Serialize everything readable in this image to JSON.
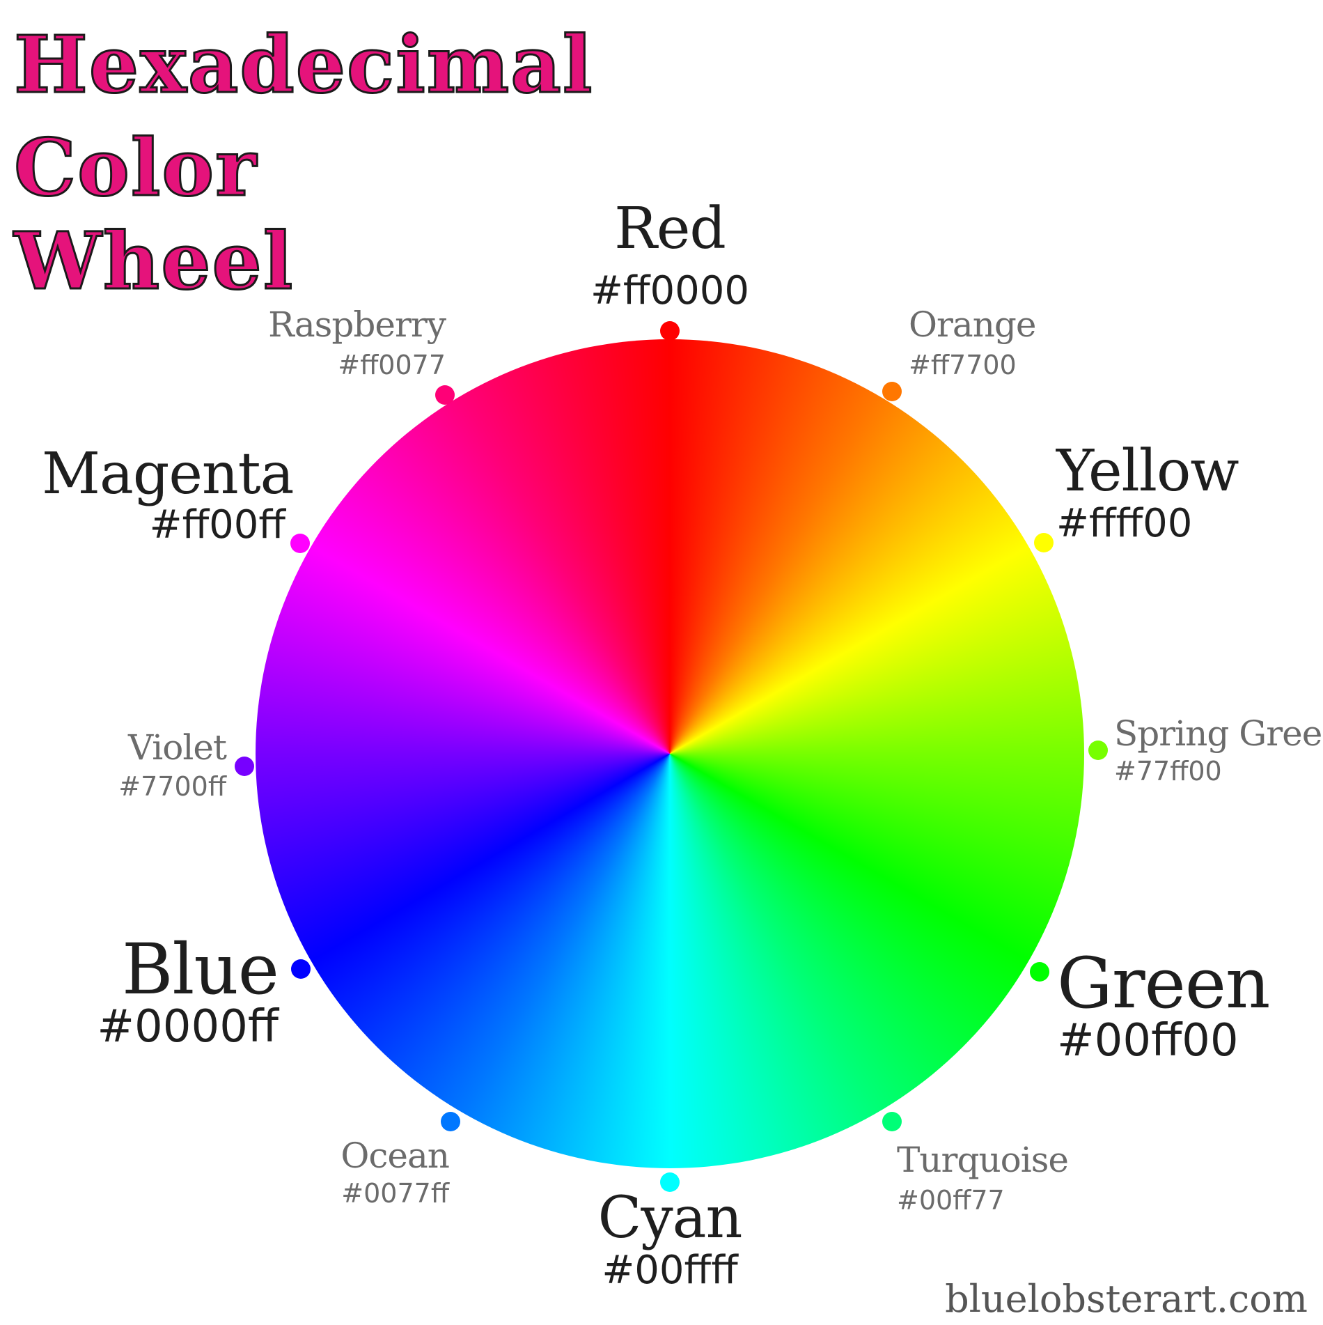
{
  "title": {
    "line1": "Hexadecimal",
    "line2": "Color",
    "line3": "Wheel"
  },
  "colors": {
    "red": {
      "name": "Red",
      "hex": "#ff0000",
      "color": "#ff0000"
    },
    "orange": {
      "name": "Orange",
      "hex": "#ff7700",
      "color": "#ff7700"
    },
    "yellow": {
      "name": "Yellow",
      "hex": "#ffff00",
      "color": "#ffff00"
    },
    "spring_green": {
      "name": "Spring Green",
      "hex": "#77ff00",
      "color": "#77ff00"
    },
    "green": {
      "name": "Green",
      "hex": "#00ff00",
      "color": "#00ff00"
    },
    "turquoise": {
      "name": "Turquoise",
      "hex": "#00ff77",
      "color": "#00ff77"
    },
    "cyan": {
      "name": "Cyan",
      "hex": "#00ffff",
      "color": "#00ffff"
    },
    "ocean": {
      "name": "Ocean",
      "hex": "#0077ff",
      "color": "#0077ff"
    },
    "blue": {
      "name": "Blue",
      "hex": "#0000ff",
      "color": "#0000ff"
    },
    "violet": {
      "name": "Violet",
      "hex": "#7700ff",
      "color": "#7700ff"
    },
    "magenta": {
      "name": "Magenta",
      "hex": "#ff00ff",
      "color": "#ff00ff"
    },
    "raspberry": {
      "name": "Raspberry",
      "hex": "#ff0077",
      "color": "#ff0077"
    }
  },
  "credit": "bluelobsterart.com",
  "title_color": "#e5137b"
}
